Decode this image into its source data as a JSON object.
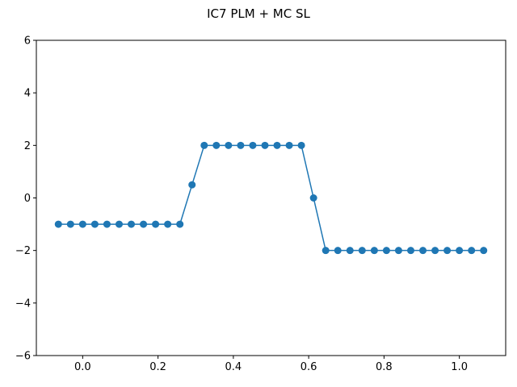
{
  "chart_data": {
    "type": "line",
    "title": "IC7 PLM + MC SL",
    "xlabel": "",
    "ylabel": "",
    "xlim": [
      -0.123,
      1.123
    ],
    "ylim": [
      -6,
      6
    ],
    "grid": false,
    "legend": "none",
    "xticks": [
      0.0,
      0.2,
      0.4,
      0.6,
      0.8,
      1.0
    ],
    "xtick_labels": [
      "0.0",
      "0.2",
      "0.4",
      "0.6",
      "0.8",
      "1.0"
    ],
    "yticks": [
      -6,
      -4,
      -2,
      0,
      2,
      4,
      6
    ],
    "ytick_labels": [
      "−6",
      "−4",
      "−2",
      "0",
      "2",
      "4",
      "6"
    ],
    "series": [
      {
        "name": "IC7",
        "color": "#1f77b4",
        "marker": "circle",
        "x": [
          -0.0645,
          -0.0323,
          0.0,
          0.0323,
          0.0645,
          0.0968,
          0.129,
          0.1613,
          0.1935,
          0.2258,
          0.2581,
          0.2903,
          0.3226,
          0.3548,
          0.3871,
          0.4194,
          0.4516,
          0.4839,
          0.5161,
          0.5484,
          0.5806,
          0.6129,
          0.6452,
          0.6774,
          0.7097,
          0.7419,
          0.7742,
          0.8065,
          0.8387,
          0.871,
          0.9032,
          0.9355,
          0.9677,
          1.0,
          1.0323,
          1.0645
        ],
        "y": [
          -1,
          -1,
          -1,
          -1,
          -1,
          -1,
          -1,
          -1,
          -1,
          -1,
          -1,
          0.5,
          2,
          2,
          2,
          2,
          2,
          2,
          2,
          2,
          2,
          0,
          -2,
          -2,
          -2,
          -2,
          -2,
          -2,
          -2,
          -2,
          -2,
          -2,
          -2,
          -2,
          -2,
          -2
        ]
      }
    ]
  }
}
